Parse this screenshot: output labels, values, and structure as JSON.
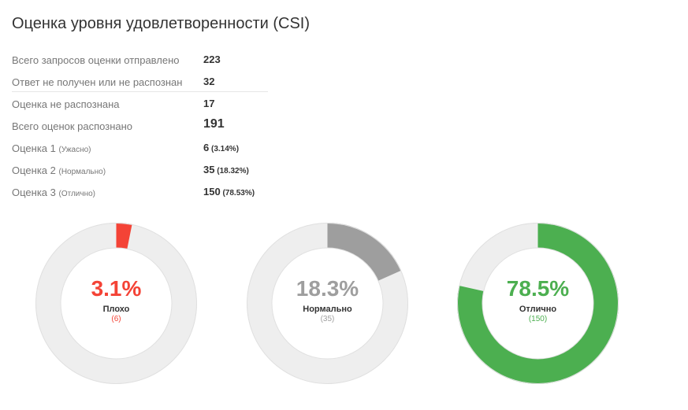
{
  "title": "Оценка уровня удовлетворенности (CSI)",
  "stats": [
    {
      "label": "Всего запросов оценки отправлено",
      "sub": "",
      "value": "223",
      "pct": "",
      "big": false
    },
    {
      "label": "Ответ не получен или не распознан",
      "sub": "",
      "value": "32",
      "pct": "",
      "big": false
    },
    {
      "label": "Оценка не распознана",
      "sub": "",
      "value": "17",
      "pct": "",
      "big": false
    },
    {
      "label": "Всего оценок распознано",
      "sub": "",
      "value": "191",
      "pct": "",
      "big": true
    },
    {
      "label": "Оценка 1 ",
      "sub": "(Ужасно)",
      "value": "6",
      "pct": " (3.14%)",
      "big": false
    },
    {
      "label": "Оценка 2 ",
      "sub": "(Нормально)",
      "value": "35",
      "pct": " (18.32%)",
      "big": false
    },
    {
      "label": "Оценка 3 ",
      "sub": "(Отлично)",
      "value": "150",
      "pct": " (78.53%)",
      "big": false
    }
  ],
  "donuts": [
    {
      "percent_text": "3.1%",
      "label": "Плохо",
      "count": "(6)",
      "fraction": 0.0314,
      "color": "#f44336"
    },
    {
      "percent_text": "18.3%",
      "label": "Нормально",
      "count": "(35)",
      "fraction": 0.1832,
      "color": "#9e9e9e"
    },
    {
      "percent_text": "78.5%",
      "label": "Отлично",
      "count": "(150)",
      "fraction": 0.7853,
      "color": "#4caf50"
    }
  ],
  "colors": {
    "track": "#eeeeee",
    "border": "#e0e0e0"
  }
}
